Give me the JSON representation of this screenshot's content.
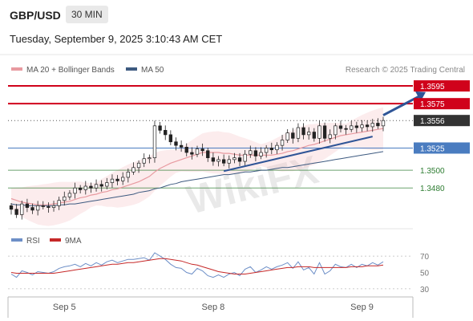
{
  "header": {
    "symbol": "GBP/USD",
    "timeframe": "30 MIN",
    "datetime": "Tuesday, September 9, 2025 3:10:43 AM CET",
    "credit": "Research © 2025 Trading Central"
  },
  "colors": {
    "resistance": "#d0021b",
    "last_price": "#333333",
    "support_strong": "#4a7cc0",
    "support": "#2e7d32",
    "trend": "#2f5597",
    "ma20": "#e89aa0",
    "ma50": "#3d5a80",
    "rsi": "#6d8fc7",
    "rsi_ma": "#c62828"
  },
  "chart_data": [
    {
      "type": "candlestick",
      "legend": [
        {
          "label": "MA 20 + Bollinger Bands",
          "color": "#e89aa0"
        },
        {
          "label": "MA 50",
          "color": "#3d5a80"
        }
      ],
      "ylim": [
        1.3435,
        1.3605
      ],
      "x_ticks": [
        {
          "label": "Sep 5",
          "index": 10
        },
        {
          "label": "Sep 8",
          "index": 38
        },
        {
          "label": "Sep 9",
          "index": 66
        }
      ],
      "levels": [
        {
          "value": 1.3595,
          "label": "1.3595",
          "kind": "resistance"
        },
        {
          "value": 1.3575,
          "label": "1.3575",
          "kind": "resistance"
        },
        {
          "value": 1.3556,
          "label": "1.3556",
          "kind": "last"
        },
        {
          "value": 1.3525,
          "label": "1.3525",
          "kind": "support_strong"
        },
        {
          "value": 1.35,
          "label": "1.3500",
          "kind": "support"
        },
        {
          "value": 1.348,
          "label": "1.3480",
          "kind": "support"
        }
      ],
      "trendline": {
        "from": {
          "index": 40,
          "value": 1.3499
        },
        "to": {
          "index": 68,
          "value": 1.3538
        }
      },
      "arrow": {
        "from": {
          "index": 70,
          "value": 1.3562
        },
        "to": {
          "index": 78,
          "value": 1.3588
        }
      },
      "close": [
        1.3456,
        1.345,
        1.3462,
        1.3458,
        1.3455,
        1.346,
        1.3459,
        1.3458,
        1.346,
        1.3466,
        1.347,
        1.3474,
        1.348,
        1.3478,
        1.3482,
        1.348,
        1.3484,
        1.3482,
        1.3486,
        1.349,
        1.3488,
        1.3492,
        1.3498,
        1.3503,
        1.3508,
        1.3513,
        1.3514,
        1.355,
        1.3545,
        1.354,
        1.3532,
        1.3528,
        1.3526,
        1.352,
        1.3518,
        1.3524,
        1.3522,
        1.3514,
        1.351,
        1.3512,
        1.3508,
        1.3512,
        1.3514,
        1.351,
        1.3518,
        1.3522,
        1.3516,
        1.352,
        1.3525,
        1.3523,
        1.3528,
        1.3534,
        1.3542,
        1.3536,
        1.3548,
        1.354,
        1.3543,
        1.3536,
        1.355,
        1.3536,
        1.354,
        1.355,
        1.3547,
        1.3546,
        1.355,
        1.3548,
        1.3551,
        1.3549,
        1.3553,
        1.355,
        1.3556
      ],
      "ma20": [
        1.3468,
        1.3466,
        1.3464,
        1.3463,
        1.3462,
        1.3461,
        1.3461,
        1.3461,
        1.3462,
        1.3463,
        1.3464,
        1.3465,
        1.3467,
        1.3469,
        1.347,
        1.3472,
        1.3473,
        1.3475,
        1.3476,
        1.3478,
        1.3479,
        1.3481,
        1.3483,
        1.3485,
        1.3487,
        1.349,
        1.3493,
        1.3498,
        1.3502,
        1.3505,
        1.3508,
        1.351,
        1.3512,
        1.3514,
        1.3516,
        1.3518,
        1.352,
        1.352,
        1.352,
        1.352,
        1.3519,
        1.3519,
        1.3518,
        1.3517,
        1.3517,
        1.3517,
        1.3517,
        1.3517,
        1.3517,
        1.3517,
        1.3518,
        1.3519,
        1.3521,
        1.3522,
        1.3524,
        1.3526,
        1.3528,
        1.3529,
        1.3531,
        1.3533,
        1.3535,
        1.3537,
        1.3539,
        1.354,
        1.3541,
        1.3542,
        1.3543,
        1.3544,
        1.3545,
        1.3546,
        1.3547
      ],
      "ma50": [
        1.3462,
        1.3461,
        1.3461,
        1.346,
        1.346,
        1.346,
        1.346,
        1.346,
        1.346,
        1.3461,
        1.3461,
        1.3462,
        1.3462,
        1.3463,
        1.3464,
        1.3465,
        1.3466,
        1.3467,
        1.3468,
        1.3469,
        1.347,
        1.3471,
        1.3472,
        1.3473,
        1.3475,
        1.3476,
        1.3477,
        1.3479,
        1.348,
        1.3482,
        1.3484,
        1.3485,
        1.3487,
        1.3488,
        1.3489,
        1.349,
        1.3491,
        1.3492,
        1.3493,
        1.3494,
        1.3495,
        1.3495,
        1.3496,
        1.3497,
        1.3498,
        1.3498,
        1.3499,
        1.35,
        1.35,
        1.3501,
        1.3502,
        1.3503,
        1.3503,
        1.3504,
        1.3505,
        1.3506,
        1.3507,
        1.3508,
        1.3509,
        1.351,
        1.3511,
        1.3512,
        1.3513,
        1.3514,
        1.3515,
        1.3516,
        1.3517,
        1.3518,
        1.3519,
        1.352,
        1.3521
      ]
    },
    {
      "type": "line",
      "legend": [
        {
          "label": "RSI",
          "color": "#6d8fc7"
        },
        {
          "label": "9MA",
          "color": "#c62828"
        }
      ],
      "ylim": [
        25,
        75
      ],
      "y_ticks": [
        70,
        50,
        30
      ],
      "series": [
        {
          "name": "RSI",
          "values": [
            48,
            44,
            52,
            50,
            47,
            51,
            50,
            49,
            51,
            55,
            57,
            58,
            60,
            57,
            61,
            58,
            62,
            59,
            63,
            65,
            62,
            64,
            66,
            66,
            67,
            68,
            65,
            74,
            70,
            66,
            60,
            56,
            55,
            50,
            48,
            55,
            52,
            46,
            44,
            47,
            44,
            48,
            50,
            46,
            54,
            57,
            50,
            53,
            57,
            54,
            57,
            59,
            62,
            55,
            63,
            53,
            56,
            48,
            62,
            48,
            52,
            60,
            57,
            56,
            60,
            56,
            60,
            58,
            62,
            59,
            63
          ]
        },
        {
          "name": "9MA",
          "values": [
            50,
            49,
            49,
            49,
            49,
            49,
            49,
            49,
            49,
            50,
            51,
            52,
            53,
            54,
            55,
            56,
            57,
            58,
            59,
            60,
            60,
            61,
            62,
            62,
            63,
            64,
            65,
            66,
            67,
            67,
            66,
            65,
            64,
            62,
            60,
            59,
            57,
            55,
            53,
            51,
            50,
            49,
            48,
            48,
            48,
            49,
            50,
            51,
            52,
            53,
            54,
            55,
            56,
            56,
            57,
            57,
            57,
            56,
            56,
            56,
            56,
            56,
            56,
            56,
            57,
            57,
            57,
            58,
            58,
            58,
            59
          ]
        }
      ]
    }
  ]
}
